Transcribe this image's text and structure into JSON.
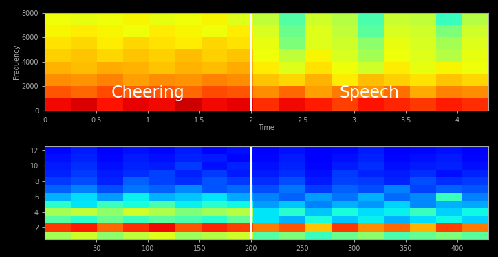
{
  "chart_data": [
    {
      "type": "heatmap",
      "x_label": "Time",
      "y_label": "Frequency",
      "color": "jet",
      "xlim": [
        0,
        4.3
      ],
      "ylim": [
        0,
        8000
      ],
      "xticks": [
        0,
        0.5,
        1,
        1.5,
        2,
        2.5,
        3,
        3.5,
        4
      ],
      "yticks": [
        0,
        2000,
        4000,
        6000,
        8000
      ],
      "vlim": [
        0,
        1
      ],
      "boundary": 2,
      "annotations": [
        "Cheering",
        "Speech"
      ],
      "cells": [
        [
          0.9,
          0.92,
          0.89,
          0.91,
          0.9,
          0.93,
          0.9,
          0.91,
          0.86,
          0.9,
          0.88,
          0.84,
          0.89,
          0.87,
          0.85,
          0.88,
          0.86
        ],
        [
          0.82,
          0.8,
          0.83,
          0.81,
          0.82,
          0.8,
          0.83,
          0.82,
          0.76,
          0.8,
          0.74,
          0.78,
          0.75,
          0.79,
          0.73,
          0.77,
          0.76
        ],
        [
          0.76,
          0.75,
          0.77,
          0.74,
          0.76,
          0.75,
          0.77,
          0.76,
          0.7,
          0.68,
          0.72,
          0.66,
          0.71,
          0.69,
          0.67,
          0.7,
          0.68
        ],
        [
          0.72,
          0.71,
          0.73,
          0.72,
          0.7,
          0.72,
          0.71,
          0.73,
          0.66,
          0.62,
          0.67,
          0.64,
          0.6,
          0.66,
          0.63,
          0.65,
          0.64
        ],
        [
          0.69,
          0.7,
          0.68,
          0.7,
          0.69,
          0.71,
          0.69,
          0.7,
          0.64,
          0.58,
          0.65,
          0.61,
          0.55,
          0.64,
          0.62,
          0.57,
          0.63
        ],
        [
          0.67,
          0.68,
          0.66,
          0.68,
          0.67,
          0.66,
          0.68,
          0.67,
          0.63,
          0.5,
          0.62,
          0.6,
          0.52,
          0.63,
          0.61,
          0.55,
          0.62
        ],
        [
          0.65,
          0.66,
          0.65,
          0.64,
          0.66,
          0.65,
          0.64,
          0.66,
          0.61,
          0.48,
          0.62,
          0.58,
          0.46,
          0.61,
          0.6,
          0.5,
          0.6
        ],
        [
          0.64,
          0.63,
          0.64,
          0.65,
          0.63,
          0.64,
          0.65,
          0.62,
          0.58,
          0.45,
          0.6,
          0.57,
          0.44,
          0.59,
          0.58,
          0.42,
          0.57
        ]
      ]
    },
    {
      "type": "heatmap",
      "color": "jet",
      "xlim": [
        0,
        430
      ],
      "ylim": [
        0.5,
        12.5
      ],
      "xticks": [
        50,
        100,
        150,
        200,
        250,
        300,
        350,
        400
      ],
      "yticks": [
        2,
        4,
        6,
        8,
        10,
        12
      ],
      "vlim": [
        0,
        1
      ],
      "boundary": 200,
      "cells": [
        [
          0.55,
          0.6,
          0.52,
          0.58,
          0.62,
          0.54,
          0.57,
          0.6,
          0.45,
          0.5,
          0.42,
          0.48,
          0.52,
          0.44,
          0.47,
          0.5,
          0.46
        ],
        [
          0.85,
          0.88,
          0.8,
          0.86,
          0.9,
          0.82,
          0.87,
          0.84,
          0.78,
          0.82,
          0.7,
          0.85,
          0.76,
          0.8,
          0.72,
          0.84,
          0.78
        ],
        [
          0.45,
          0.4,
          0.48,
          0.42,
          0.46,
          0.44,
          0.4,
          0.47,
          0.35,
          0.3,
          0.38,
          0.32,
          0.36,
          0.3,
          0.34,
          0.37,
          0.33
        ],
        [
          0.55,
          0.58,
          0.52,
          0.6,
          0.56,
          0.5,
          0.54,
          0.57,
          0.35,
          0.4,
          0.32,
          0.38,
          0.34,
          0.36,
          0.42,
          0.33,
          0.37
        ],
        [
          0.4,
          0.35,
          0.42,
          0.38,
          0.44,
          0.36,
          0.4,
          0.37,
          0.28,
          0.32,
          0.25,
          0.3,
          0.27,
          0.33,
          0.26,
          0.3,
          0.29
        ],
        [
          0.3,
          0.34,
          0.28,
          0.36,
          0.3,
          0.32,
          0.35,
          0.29,
          0.25,
          0.22,
          0.28,
          0.24,
          0.3,
          0.23,
          0.26,
          0.42,
          0.25
        ],
        [
          0.22,
          0.25,
          0.2,
          0.24,
          0.22,
          0.26,
          0.21,
          0.23,
          0.2,
          0.24,
          0.18,
          0.22,
          0.2,
          0.25,
          0.19,
          0.22,
          0.21
        ],
        [
          0.18,
          0.2,
          0.16,
          0.22,
          0.19,
          0.17,
          0.21,
          0.18,
          0.17,
          0.2,
          0.15,
          0.19,
          0.18,
          0.16,
          0.2,
          0.17,
          0.18
        ],
        [
          0.16,
          0.18,
          0.15,
          0.17,
          0.19,
          0.16,
          0.18,
          0.15,
          0.15,
          0.17,
          0.14,
          0.18,
          0.16,
          0.15,
          0.17,
          0.14,
          0.16
        ],
        [
          0.15,
          0.17,
          0.14,
          0.16,
          0.15,
          0.18,
          0.14,
          0.16,
          0.14,
          0.16,
          0.13,
          0.15,
          0.17,
          0.14,
          0.15,
          0.16,
          0.14
        ],
        [
          0.14,
          0.16,
          0.13,
          0.15,
          0.14,
          0.16,
          0.15,
          0.13,
          0.13,
          0.15,
          0.12,
          0.14,
          0.16,
          0.13,
          0.14,
          0.15,
          0.13
        ],
        [
          0.13,
          0.15,
          0.12,
          0.14,
          0.13,
          0.15,
          0.12,
          0.14,
          0.12,
          0.14,
          0.11,
          0.13,
          0.15,
          0.12,
          0.13,
          0.14,
          0.12
        ]
      ]
    }
  ]
}
